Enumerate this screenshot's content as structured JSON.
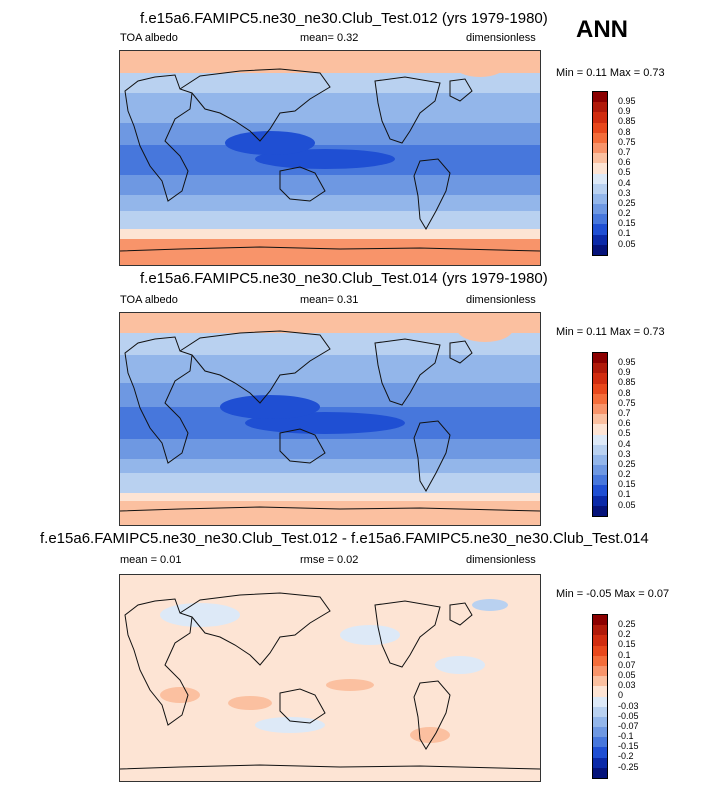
{
  "season": "ANN",
  "panels": [
    {
      "title": "f.e15a6.FAMIPC5.ne30_ne30.Club_Test.012 (yrs 1979-1980)",
      "left": "TOA albedo",
      "mid": "mean=   0.32",
      "right": "dimensionless",
      "minmax": "Min =  0.11 Max =  0.73",
      "scale": "albedo",
      "colorbar_labels": [
        "0.95",
        "0.9",
        "0.85",
        "0.8",
        "0.75",
        "0.7",
        "0.6",
        "0.5",
        "0.4",
        "0.3",
        "0.25",
        "0.2",
        "0.15",
        "0.1",
        "0.05"
      ]
    },
    {
      "title": "f.e15a6.FAMIPC5.ne30_ne30.Club_Test.014 (yrs 1979-1980)",
      "left": "TOA albedo",
      "mid": "mean=   0.31",
      "right": "dimensionless",
      "minmax": "Min =  0.11 Max =  0.73",
      "scale": "albedo",
      "colorbar_labels": [
        "0.95",
        "0.9",
        "0.85",
        "0.8",
        "0.75",
        "0.7",
        "0.6",
        "0.5",
        "0.4",
        "0.3",
        "0.25",
        "0.2",
        "0.15",
        "0.1",
        "0.05"
      ]
    },
    {
      "title": "f.e15a6.FAMIPC5.ne30_ne30.Club_Test.012 - f.e15a6.FAMIPC5.ne30_ne30.Club_Test.014",
      "left": "mean =   0.01",
      "mid": "rmse =   0.02",
      "right": "dimensionless",
      "minmax": "Min =  -0.05 Max =  0.07",
      "scale": "diff",
      "colorbar_labels": [
        "0.25",
        "0.2",
        "0.15",
        "0.1",
        "0.07",
        "0.05",
        "0.03",
        "0",
        "-0.03",
        "-0.05",
        "-0.07",
        "-0.1",
        "-0.15",
        "-0.2",
        "-0.25"
      ]
    }
  ],
  "colors": {
    "albedo_scale": [
      "#8b0000",
      "#b01a0a",
      "#d12d10",
      "#e8481c",
      "#f46d3a",
      "#f8946a",
      "#fbc0a0",
      "#fde4d4",
      "#dde9f7",
      "#b9d1f0",
      "#93b6ea",
      "#6e98e2",
      "#4777dc",
      "#1f4fd3",
      "#0b2aa8",
      "#05137a"
    ],
    "diff_scale": [
      "#8b0000",
      "#b01a0a",
      "#d12d10",
      "#e8481c",
      "#f46d3a",
      "#f8946a",
      "#fbc0a0",
      "#fde4d4",
      "#dde9f7",
      "#b9d1f0",
      "#93b6ea",
      "#6e98e2",
      "#4777dc",
      "#1f4fd3",
      "#0b2aa8",
      "#05137a"
    ],
    "coast": "#111111"
  }
}
